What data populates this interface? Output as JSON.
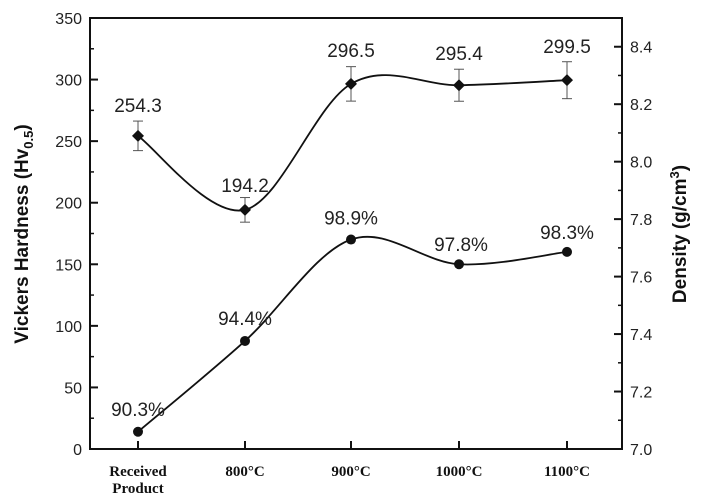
{
  "chart_data": {
    "type": "line",
    "categories": [
      "Received Product",
      "800°C",
      "900°C",
      "1000°C",
      "1100°C"
    ],
    "category_labels": [
      [
        "Received",
        "Product"
      ],
      [
        "800°C"
      ],
      [
        "900°C"
      ],
      [
        "1000°C"
      ],
      [
        "1100°C"
      ]
    ],
    "left_axis": {
      "label": "Vickers Hardness (Hv",
      "label_sub": "0.5",
      "label_end": ")",
      "ylim": [
        0,
        350
      ],
      "ticks": [
        "0",
        "50",
        "100",
        "150",
        "200",
        "250",
        "300",
        "350"
      ]
    },
    "right_axis": {
      "label": "Density (g/cm",
      "label_sup": "3",
      "label_end": ")",
      "ylim": [
        7.0,
        8.5
      ],
      "ticks": [
        "7.0",
        "7.2",
        "7.4",
        "7.6",
        "7.8",
        "8.0",
        "8.2",
        "8.4"
      ]
    },
    "series": [
      {
        "axis": "left",
        "marker": "diamond",
        "values": [
          254.3,
          194.2,
          296.5,
          295.4,
          299.5
        ],
        "error": [
          12,
          10,
          14,
          13,
          15
        ],
        "labels": [
          "254.3",
          "194.2",
          "296.5",
          "295.4",
          "299.5"
        ]
      },
      {
        "axis": "right",
        "marker": "circle",
        "values": [
          7.06,
          7.376,
          7.729,
          7.643,
          7.686
        ],
        "labels": [
          "90.3%",
          "94.4%",
          "98.9%",
          "97.8%",
          "98.3%"
        ]
      }
    ],
    "grid": false,
    "legend": "none"
  }
}
